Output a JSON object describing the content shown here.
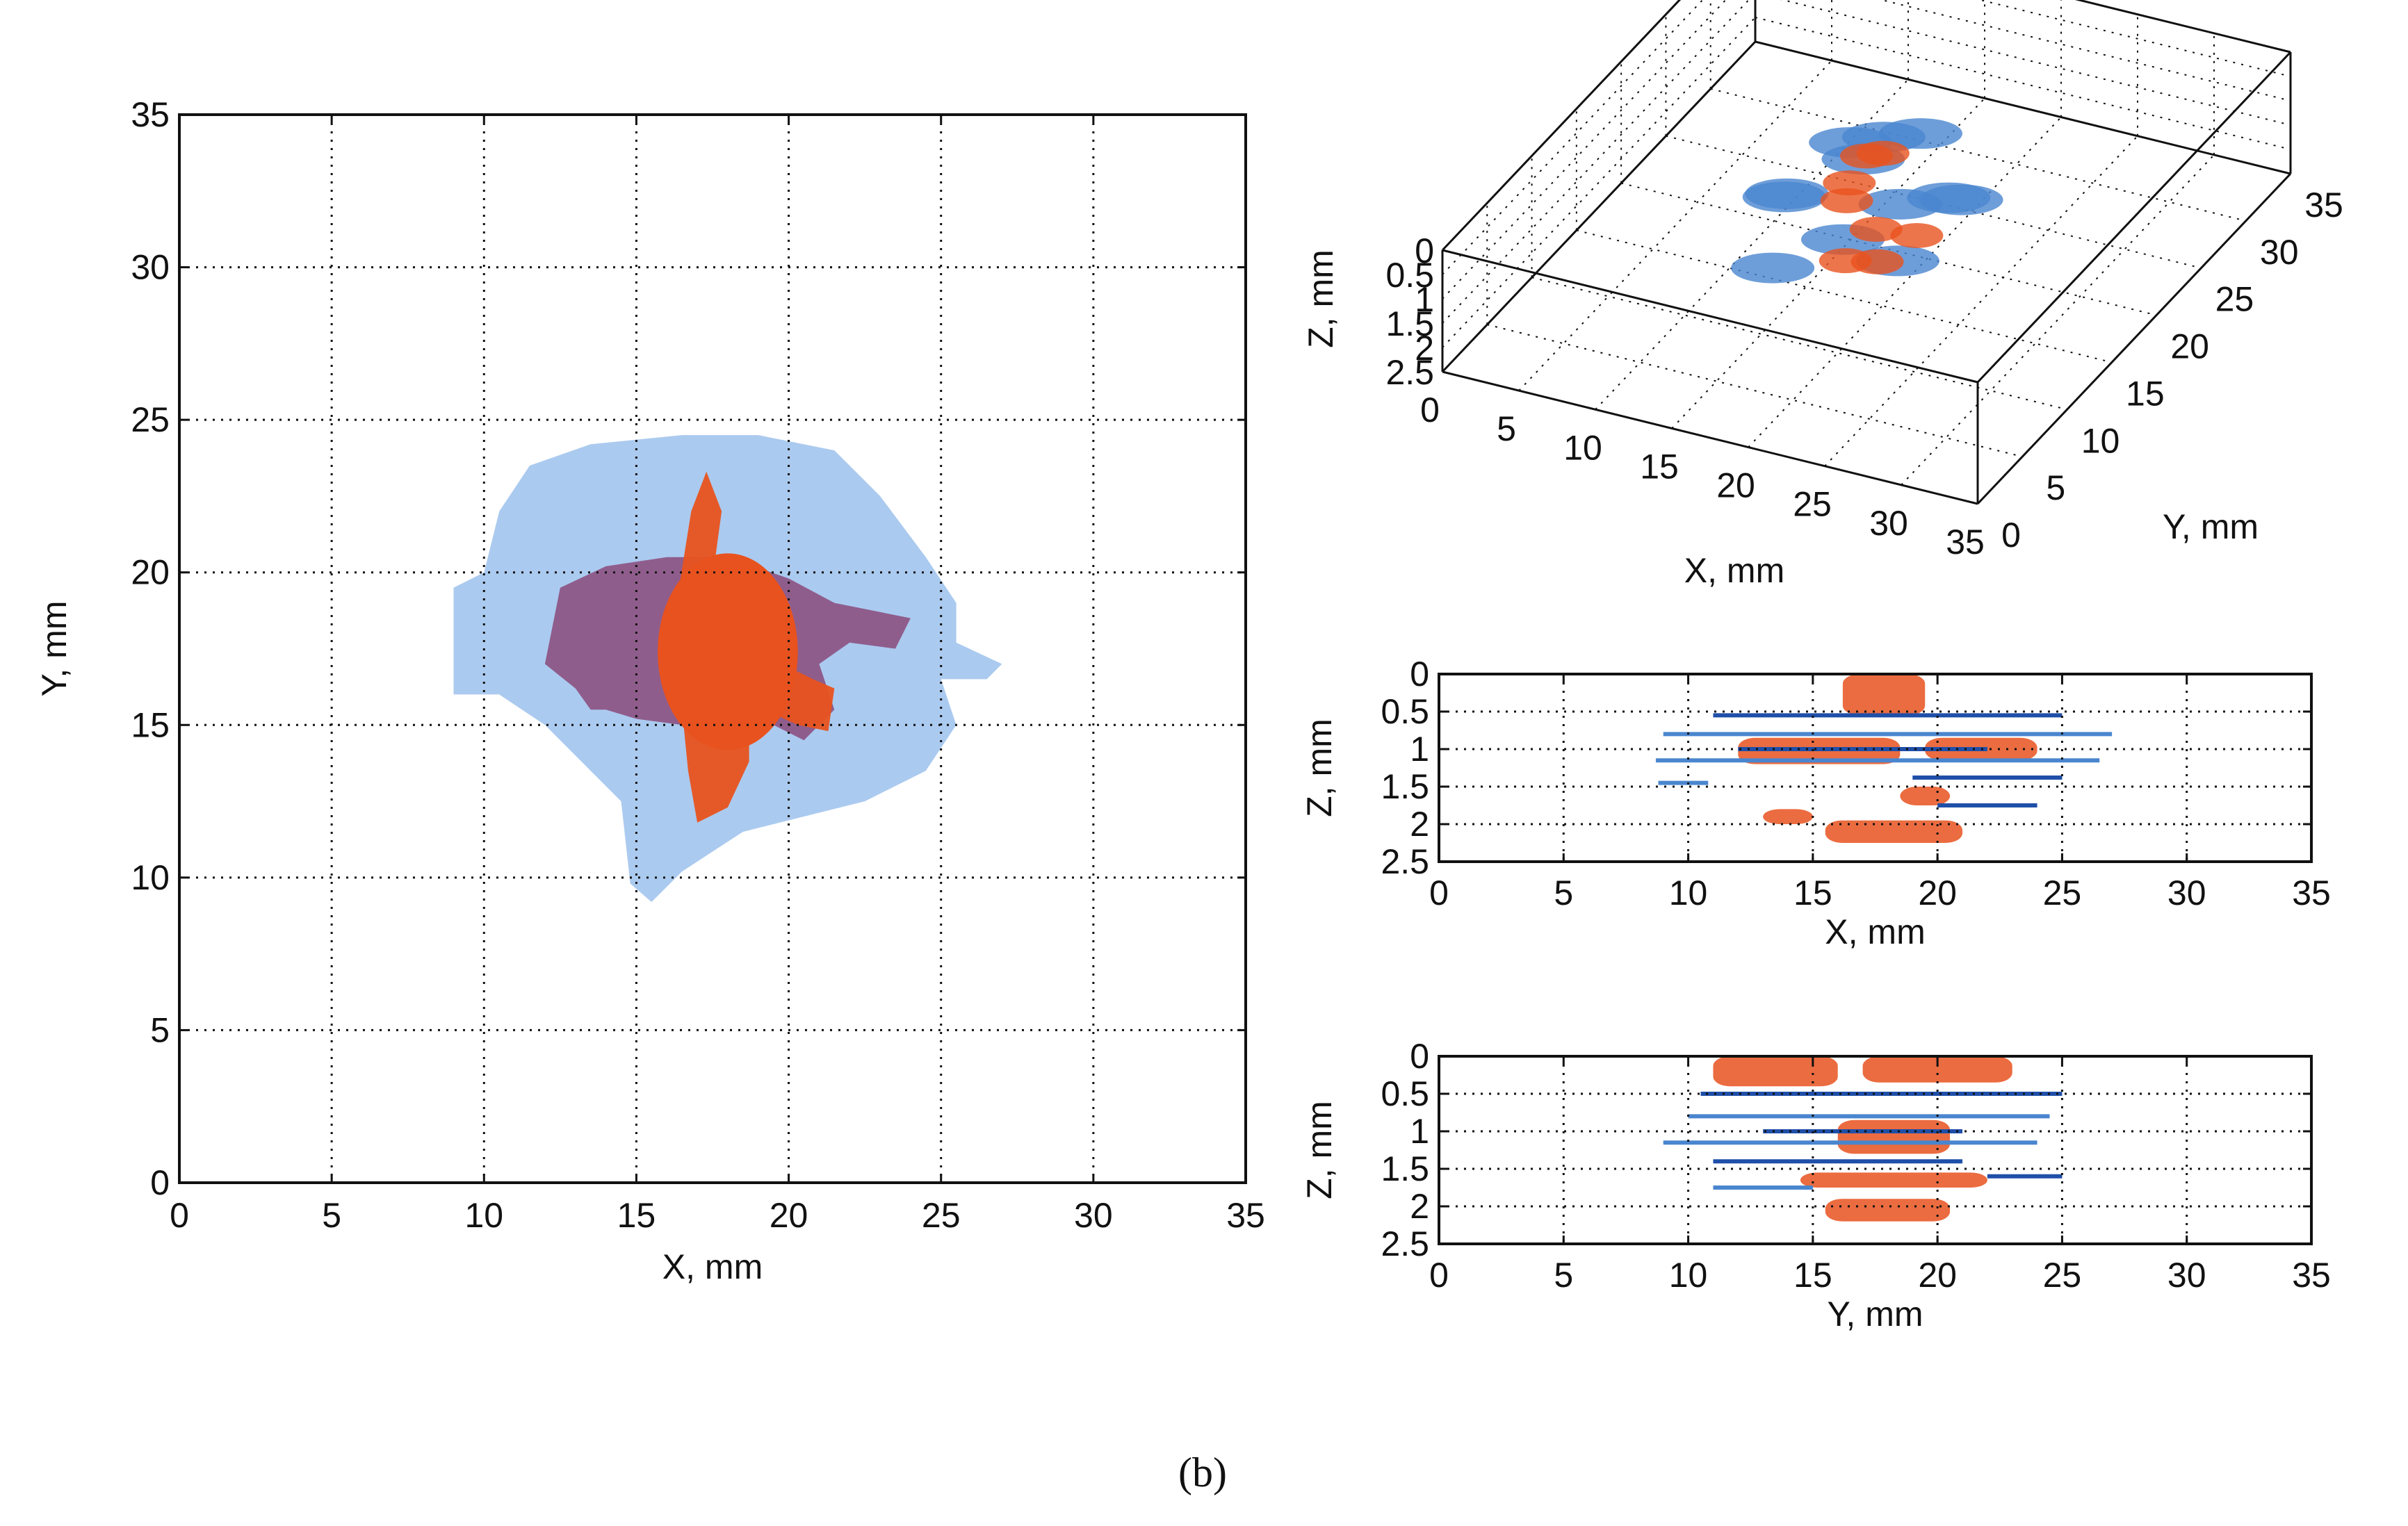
{
  "caption": "(b)",
  "colors": {
    "light_blue": "#a7c7ee",
    "mid_blue": "#4a86cf",
    "dark_blue": "#1f4fa8",
    "orange": "#e8521e",
    "purple": "#8a4a7a",
    "grid": "#111111"
  },
  "chart_data": [
    {
      "id": "xy-projection",
      "type": "heatmap",
      "xlabel": "X, mm",
      "ylabel": "Y, mm",
      "xlim": [
        0,
        35
      ],
      "ylim": [
        0,
        35
      ],
      "xticks": [
        "0",
        "5",
        "10",
        "15",
        "20",
        "25",
        "30",
        "35"
      ],
      "yticks": [
        "0",
        "5",
        "10",
        "15",
        "20",
        "25",
        "30",
        "35"
      ],
      "grid": true,
      "regions": [
        {
          "name": "",
          "color": "#a7c7ee",
          "outline": [
            [
              9,
              17.5
            ],
            [
              9,
              19.5
            ],
            [
              10,
              20
            ],
            [
              10.5,
              22
            ],
            [
              11.5,
              23.5
            ],
            [
              13.5,
              24.2
            ],
            [
              16.5,
              24.5
            ],
            [
              19,
              24.5
            ],
            [
              21.5,
              24
            ],
            [
              23,
              22.5
            ],
            [
              24.5,
              20.5
            ],
            [
              25.5,
              19
            ],
            [
              25.5,
              17.7
            ],
            [
              27,
              17
            ],
            [
              26.5,
              16.5
            ],
            [
              25,
              16.5
            ],
            [
              25.5,
              15
            ],
            [
              24.5,
              13.5
            ],
            [
              22.5,
              12.5
            ],
            [
              20.5,
              12
            ],
            [
              18.5,
              11.5
            ],
            [
              16.5,
              10.2
            ],
            [
              15.5,
              9.2
            ],
            [
              14.8,
              9.8
            ],
            [
              14.5,
              12.5
            ],
            [
              13.5,
              13.5
            ],
            [
              12,
              15
            ],
            [
              10.5,
              16
            ],
            [
              9,
              16
            ]
          ]
        },
        {
          "name": "",
          "color": "#8a4a7a",
          "outline": [
            [
              12,
              17
            ],
            [
              12.5,
              19.5
            ],
            [
              14,
              20.2
            ],
            [
              16,
              20.5
            ],
            [
              18,
              20.5
            ],
            [
              20,
              19.8
            ],
            [
              21.5,
              19
            ],
            [
              23,
              18.7
            ],
            [
              24,
              18.5
            ],
            [
              23.5,
              17.5
            ],
            [
              22,
              17.7
            ],
            [
              21,
              17
            ],
            [
              21.5,
              15.5
            ],
            [
              20.5,
              14.5
            ],
            [
              19.5,
              15
            ],
            [
              18,
              15.2
            ],
            [
              16.5,
              15
            ],
            [
              15,
              15.2
            ],
            [
              14,
              15.5
            ],
            [
              13.5,
              15.5
            ],
            [
              13,
              16.2
            ]
          ]
        },
        {
          "name": "",
          "color": "#e8521e",
          "outline": [
            [
              15.8,
              18
            ],
            [
              16.4,
              19.5
            ],
            [
              16.8,
              22
            ],
            [
              17.3,
              23.3
            ],
            [
              17.8,
              22
            ],
            [
              17.5,
              19.8
            ],
            [
              18.3,
              19.5
            ],
            [
              19.3,
              18.8
            ],
            [
              20,
              18
            ],
            [
              19.8,
              17
            ],
            [
              20.8,
              16.5
            ],
            [
              21.5,
              16.2
            ],
            [
              21.3,
              14.8
            ],
            [
              20.3,
              15
            ],
            [
              19.2,
              15.5
            ],
            [
              18.7,
              15
            ],
            [
              18.7,
              13.8
            ],
            [
              18,
              12.3
            ],
            [
              17,
              11.8
            ],
            [
              16.7,
              13.5
            ],
            [
              16.5,
              15.5
            ],
            [
              15.8,
              16.5
            ]
          ]
        }
      ]
    },
    {
      "id": "xyz-3d",
      "type": "scatter",
      "xlabel": "X, mm",
      "ylabel": "Y, mm",
      "zlabel": "Z, mm",
      "xlim": [
        0,
        35
      ],
      "ylim": [
        0,
        35
      ],
      "zlim": [
        0,
        2.5
      ],
      "xticks": [
        "0",
        "5",
        "10",
        "15",
        "20",
        "25",
        "30",
        "35"
      ],
      "yticks": [
        "0",
        "5",
        "10",
        "15",
        "20",
        "25",
        "30",
        "35"
      ],
      "zticks": [
        "0",
        "0.5",
        "1",
        "1.5",
        "2",
        "2.5"
      ],
      "grid": true,
      "points": [
        {
          "x": 17,
          "y": 18,
          "z": 0.3,
          "color": "#4a86cf"
        },
        {
          "x": 15,
          "y": 20,
          "z": 0.5,
          "color": "#4a86cf"
        },
        {
          "x": 20,
          "y": 17,
          "z": 0.8,
          "color": "#4a86cf"
        },
        {
          "x": 13,
          "y": 16,
          "z": 1.0,
          "color": "#4a86cf"
        },
        {
          "x": 18,
          "y": 14,
          "z": 1.1,
          "color": "#4a86cf"
        },
        {
          "x": 22,
          "y": 19,
          "z": 0.9,
          "color": "#4a86cf"
        },
        {
          "x": 16,
          "y": 22,
          "z": 0.7,
          "color": "#4a86cf"
        },
        {
          "x": 19,
          "y": 21,
          "z": 0.2,
          "color": "#4a86cf"
        },
        {
          "x": 12,
          "y": 18,
          "z": 1.4,
          "color": "#4a86cf"
        },
        {
          "x": 21,
          "y": 15,
          "z": 1.5,
          "color": "#4a86cf"
        },
        {
          "x": 14,
          "y": 13,
          "z": 1.8,
          "color": "#4a86cf"
        },
        {
          "x": 24,
          "y": 17,
          "z": 0.4,
          "color": "#4a86cf"
        },
        {
          "x": 17.5,
          "y": 17.5,
          "z": 0.1,
          "color": "#e8521e"
        },
        {
          "x": 18,
          "y": 18.5,
          "z": 0.2,
          "color": "#e8521e"
        },
        {
          "x": 16.5,
          "y": 17,
          "z": 1.0,
          "color": "#e8521e"
        },
        {
          "x": 19,
          "y": 16,
          "z": 1.2,
          "color": "#e8521e"
        },
        {
          "x": 17,
          "y": 16,
          "z": 2.0,
          "color": "#e8521e"
        },
        {
          "x": 18.5,
          "y": 17,
          "z": 2.1,
          "color": "#e8521e"
        },
        {
          "x": 15.5,
          "y": 19,
          "z": 1.1,
          "color": "#e8521e"
        },
        {
          "x": 20.5,
          "y": 18,
          "z": 1.6,
          "color": "#e8521e"
        }
      ]
    },
    {
      "id": "xz-projection",
      "type": "scatter",
      "xlabel": "X, mm",
      "ylabel": "Z, mm",
      "xlim": [
        0,
        35
      ],
      "ylim": [
        0,
        2.5
      ],
      "xticks": [
        "0",
        "5",
        "10",
        "15",
        "20",
        "25",
        "30",
        "35"
      ],
      "yticks": [
        "0",
        "0.5",
        "1",
        "1.5",
        "2",
        "2.5"
      ],
      "grid": true,
      "blue_lines": [
        {
          "x0": 11,
          "x1": 25,
          "z": 0.55
        },
        {
          "x0": 9,
          "x1": 27,
          "z": 0.8
        },
        {
          "x0": 12,
          "x1": 22,
          "z": 1.0
        },
        {
          "x0": 8.7,
          "x1": 26.5,
          "z": 1.15
        },
        {
          "x0": 19,
          "x1": 25,
          "z": 1.38
        },
        {
          "x0": 8.8,
          "x1": 10.8,
          "z": 1.45
        },
        {
          "x0": 20,
          "x1": 24,
          "z": 1.75
        }
      ],
      "orange_blobs": [
        {
          "x0": 16.2,
          "x1": 19.5,
          "z0": 0.0,
          "z1": 0.55
        },
        {
          "x0": 12,
          "x1": 18.5,
          "z0": 0.85,
          "z1": 1.2
        },
        {
          "x0": 19.5,
          "x1": 24,
          "z0": 0.85,
          "z1": 1.15
        },
        {
          "x0": 18.5,
          "x1": 20.5,
          "z0": 1.5,
          "z1": 1.75
        },
        {
          "x0": 13,
          "x1": 15,
          "z0": 1.8,
          "z1": 2.0
        },
        {
          "x0": 15.5,
          "x1": 21,
          "z0": 1.95,
          "z1": 2.25
        }
      ]
    },
    {
      "id": "yz-projection",
      "type": "scatter",
      "xlabel": "Y, mm",
      "ylabel": "Z, mm",
      "xlim": [
        0,
        35
      ],
      "ylim": [
        0,
        2.5
      ],
      "xticks": [
        "0",
        "5",
        "10",
        "15",
        "20",
        "25",
        "30",
        "35"
      ],
      "yticks": [
        "0",
        "0.5",
        "1",
        "1.5",
        "2",
        "2.5"
      ],
      "grid": true,
      "blue_lines": [
        {
          "x0": 10.5,
          "x1": 25,
          "z": 0.5
        },
        {
          "x0": 10,
          "x1": 24.5,
          "z": 0.8
        },
        {
          "x0": 13,
          "x1": 21,
          "z": 1.0
        },
        {
          "x0": 9,
          "x1": 24,
          "z": 1.15
        },
        {
          "x0": 11,
          "x1": 21,
          "z": 1.4
        },
        {
          "x0": 11,
          "x1": 15,
          "z": 1.75
        },
        {
          "x0": 22,
          "x1": 25,
          "z": 1.6
        }
      ],
      "orange_blobs": [
        {
          "x0": 11,
          "x1": 16,
          "z0": 0.0,
          "z1": 0.4
        },
        {
          "x0": 17,
          "x1": 23,
          "z0": 0.0,
          "z1": 0.35
        },
        {
          "x0": 16,
          "x1": 20.5,
          "z0": 0.85,
          "z1": 1.3
        },
        {
          "x0": 14.5,
          "x1": 22,
          "z0": 1.55,
          "z1": 1.75
        },
        {
          "x0": 15.5,
          "x1": 20.5,
          "z0": 1.9,
          "z1": 2.2
        }
      ]
    }
  ]
}
